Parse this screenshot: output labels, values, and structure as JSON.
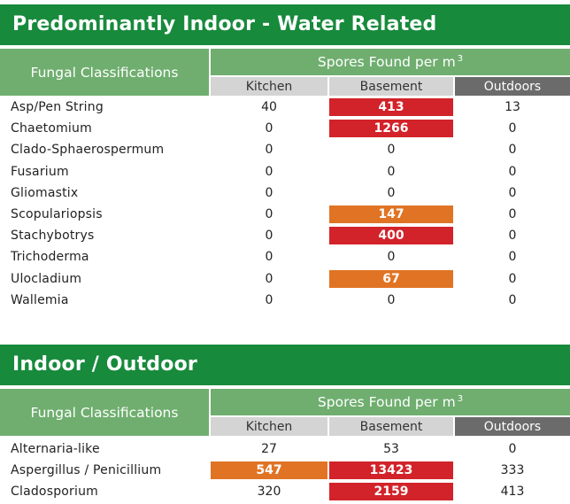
{
  "section1": {
    "title": "Predominantly Indoor - Water Related",
    "header_fc": "Fungal Classifications",
    "header_spores": "Spores Found per m",
    "header_sup": "3",
    "columns": [
      "Kitchen",
      "Basement",
      "Outdoors"
    ],
    "rows": [
      {
        "name": "Asp/Pen String",
        "kitchen": "40",
        "basement": "413",
        "outdoors": "13",
        "basement_level": "red"
      },
      {
        "name": "Chaetomium",
        "kitchen": "0",
        "basement": "1266",
        "outdoors": "0",
        "basement_level": "red"
      },
      {
        "name": "Clado-Sphaerospermum",
        "kitchen": "0",
        "basement": "0",
        "outdoors": "0",
        "basement_level": "none"
      },
      {
        "name": "Fusarium",
        "kitchen": "0",
        "basement": "0",
        "outdoors": "0",
        "basement_level": "none"
      },
      {
        "name": "Gliomastix",
        "kitchen": "0",
        "basement": "0",
        "outdoors": "0",
        "basement_level": "none"
      },
      {
        "name": "Scopulariopsis",
        "kitchen": "0",
        "basement": "147",
        "outdoors": "0",
        "basement_level": "orange"
      },
      {
        "name": "Stachybotrys",
        "kitchen": "0",
        "basement": "400",
        "outdoors": "0",
        "basement_level": "red"
      },
      {
        "name": "Trichoderma",
        "kitchen": "0",
        "basement": "0",
        "outdoors": "0",
        "basement_level": "none"
      },
      {
        "name": "Ulocladium",
        "kitchen": "0",
        "basement": "67",
        "outdoors": "0",
        "basement_level": "orange"
      },
      {
        "name": "Wallemia",
        "kitchen": "0",
        "basement": "0",
        "outdoors": "0",
        "basement_level": "none"
      }
    ]
  },
  "section2": {
    "title": "Indoor / Outdoor",
    "header_fc": "Fungal Classifications",
    "header_spores": "Spores Found per m",
    "header_sup": "3",
    "columns": [
      "Kitchen",
      "Basement",
      "Outdoors"
    ],
    "rows": [
      {
        "name": "Alternaria-like",
        "kitchen": "27",
        "basement": "53",
        "outdoors": "0",
        "kitchen_level": "none",
        "basement_level": "none"
      },
      {
        "name": "Aspergillus / Penicillium",
        "kitchen": "547",
        "basement": "13423",
        "outdoors": "333",
        "kitchen_level": "orange",
        "basement_level": "red"
      },
      {
        "name": "Cladosporium",
        "kitchen": "320",
        "basement": "2159",
        "outdoors": "413",
        "kitchen_level": "none",
        "basement_level": "red"
      }
    ]
  },
  "colors": {
    "banner": "#178a3c",
    "header": "#6fae6f",
    "column_light": "#d4d4d4",
    "column_dark": "#6b6b6b",
    "high": "#d2232a",
    "elevated": "#e07424"
  }
}
